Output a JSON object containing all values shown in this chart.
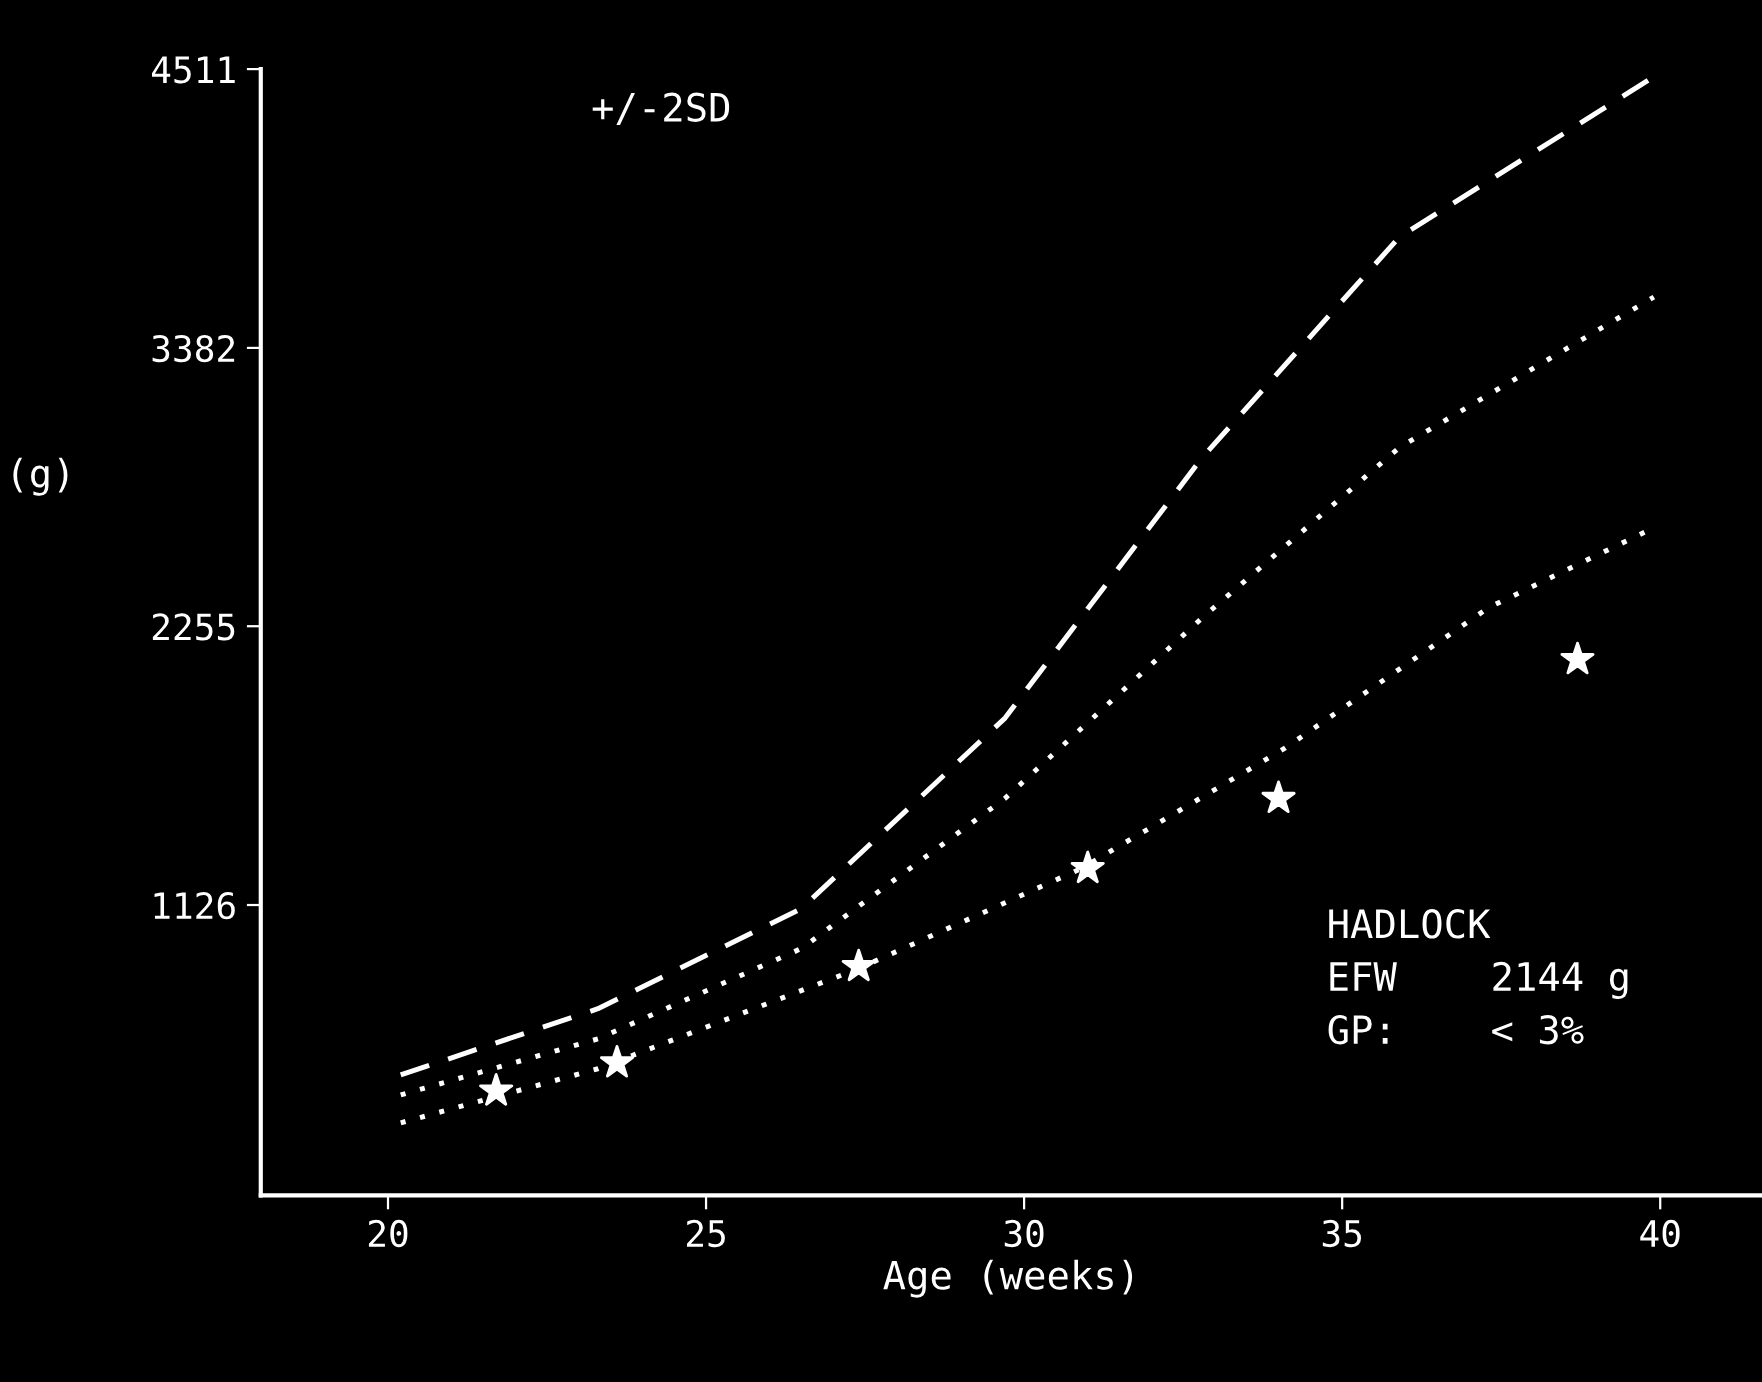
{
  "chart_data": {
    "type": "line",
    "xlabel": "Age (weeks)",
    "ylabel": "(g)",
    "xlim": [
      18,
      41.6
    ],
    "xticks": [
      20,
      25,
      30,
      35,
      40
    ],
    "ylim": [
      -50,
      4511
    ],
    "yticks": [
      1126,
      2255,
      3382,
      4511
    ],
    "grid": false,
    "legend": false,
    "annotations": [
      "+/-2SD",
      "HADLOCK",
      "EFW    2144 g",
      "GP:    < 3%"
    ],
    "series": [
      {
        "color": "#ffffff",
        "line_style": "dashed",
        "marker": "none",
        "x": [
          20.2,
          23.3,
          26.5,
          29.7,
          32.8,
          35.9,
          39.9
        ],
        "values": [
          438,
          706,
          1112,
          1883,
          2938,
          3831,
          4480
        ]
      },
      {
        "color": "#ffffff",
        "line_style": "dotted",
        "marker": "none",
        "x": [
          20.2,
          23.3,
          26.5,
          29.7,
          32.8,
          35.9,
          39.9
        ],
        "values": [
          357,
          584,
          950,
          1558,
          2289,
          2979,
          3588
        ]
      },
      {
        "color": "#ffffff",
        "line_style": "dotted",
        "marker": "none",
        "x": [
          20.2,
          23.3,
          27.4,
          30.9,
          34.1,
          37.3,
          39.9
        ],
        "values": [
          244,
          463,
          869,
          1274,
          1761,
          2330,
          2654
        ]
      },
      {
        "type": "scatter",
        "color": "#ffffff",
        "marker": "star",
        "x": [
          21.7,
          23.6,
          27.4,
          31.0,
          34.0,
          38.7
        ],
        "values": [
          373,
          487,
          877,
          1274,
          1558,
          2120
        ]
      }
    ]
  }
}
